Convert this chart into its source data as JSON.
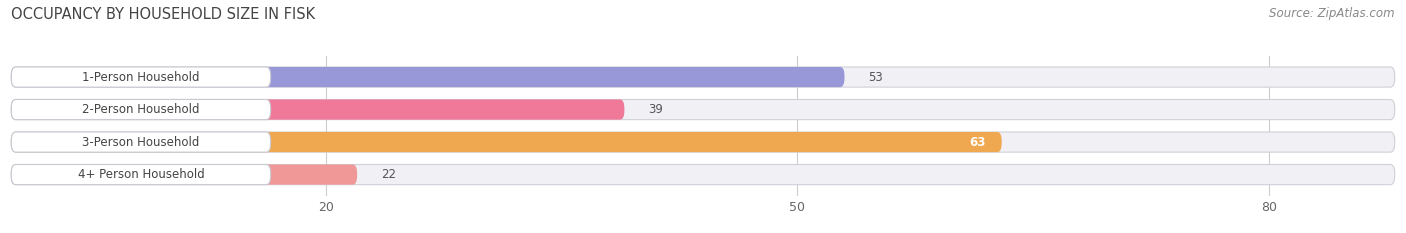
{
  "title": "OCCUPANCY BY HOUSEHOLD SIZE IN FISK",
  "source": "Source: ZipAtlas.com",
  "categories": [
    "1-Person Household",
    "2-Person Household",
    "3-Person Household",
    "4+ Person Household"
  ],
  "values": [
    53,
    39,
    63,
    22
  ],
  "bar_colors": [
    "#9898d8",
    "#f07898",
    "#f0a850",
    "#f09898"
  ],
  "bar_bg_color": "#e8e8ee",
  "xlim": [
    0,
    88
  ],
  "xticks": [
    20,
    50,
    80
  ],
  "figsize": [
    14.06,
    2.33
  ],
  "dpi": 100,
  "title_fontsize": 10.5,
  "source_fontsize": 8.5,
  "label_fontsize": 8.5,
  "value_fontsize": 8.5,
  "tick_fontsize": 9,
  "bg_color": "#ffffff",
  "row_bg_color": "#f0f0f5",
  "label_box_color": "#ffffff"
}
